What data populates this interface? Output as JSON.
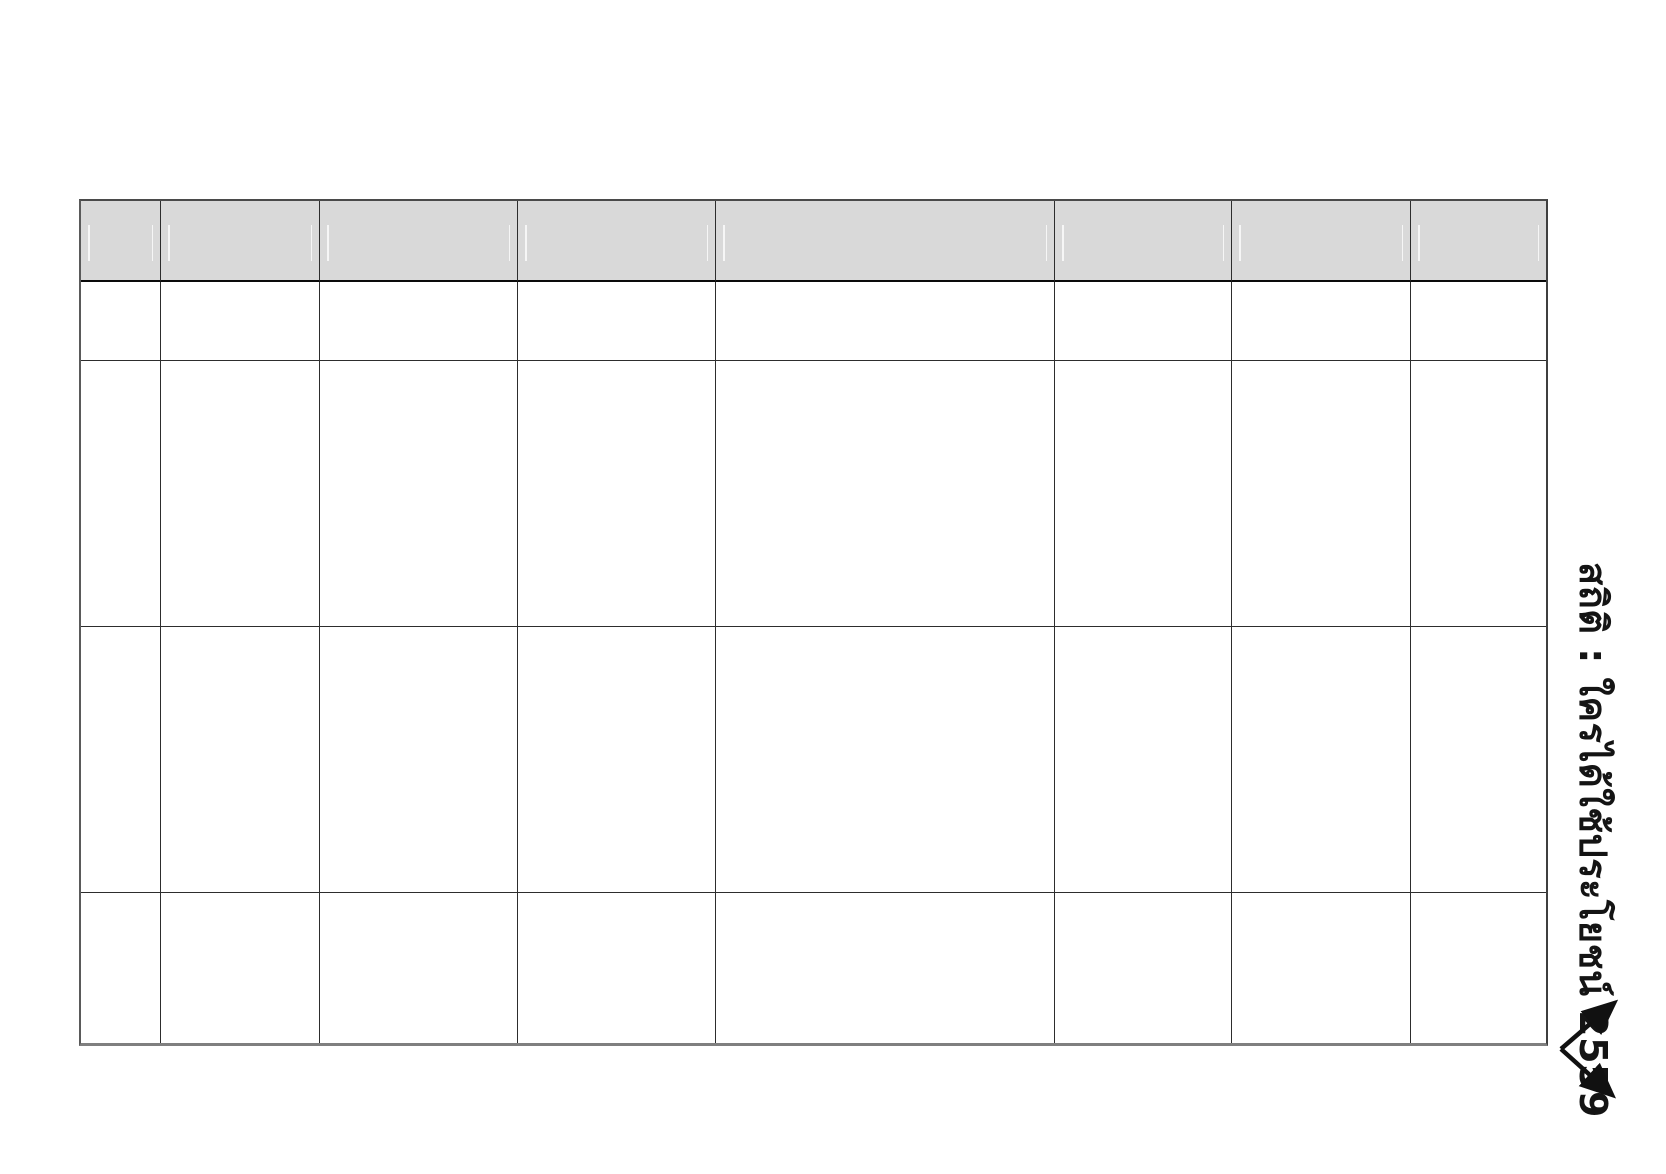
{
  "page": {
    "background_color": "#ffffff"
  },
  "table": {
    "header_fill_color": "#d9d9d9",
    "grid_line_color": "#2d2d2d",
    "outer_border_color": "#4a4a4a",
    "header_cells": [
      "",
      "",
      "",
      "",
      "",
      "",
      "",
      ""
    ],
    "rows": [
      [
        "",
        "",
        "",
        "",
        "",
        "",
        "",
        ""
      ],
      [
        "",
        "",
        "",
        "",
        "",
        "",
        "",
        ""
      ],
      [
        "",
        "",
        "",
        "",
        "",
        "",
        "",
        ""
      ],
      [
        "",
        "",
        "",
        "",
        "",
        "",
        "",
        ""
      ]
    ]
  },
  "side_caption": {
    "text": "สถิติ : ใครได้ใช้ประโยชน์ 2559",
    "prefix": "สถิติ",
    "separator": ":",
    "title": "ใครได้ใช้ประโยชน์",
    "year": "2559",
    "text_color": "#141414"
  }
}
